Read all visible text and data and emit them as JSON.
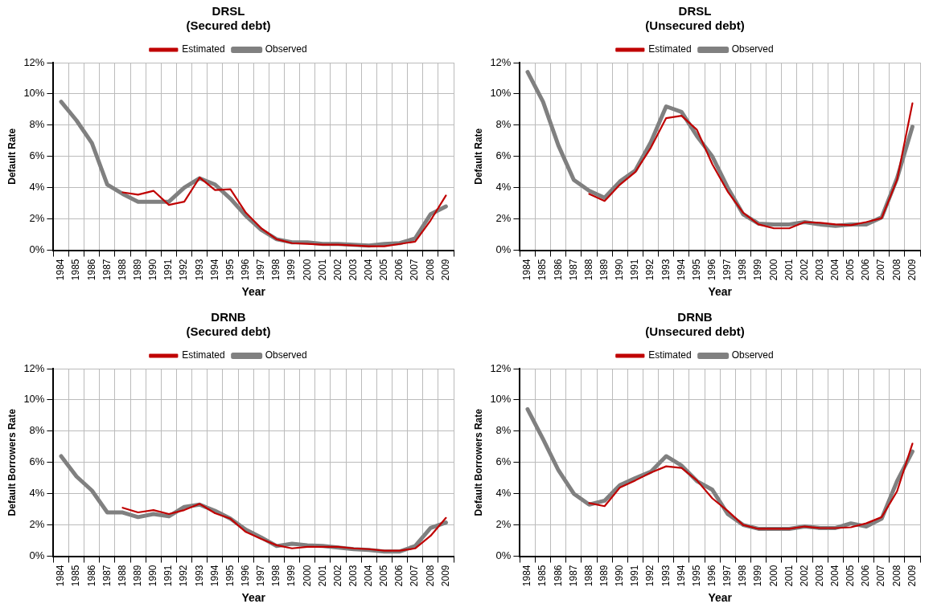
{
  "chart_data": [
    {
      "type": "line",
      "title": "DRSL",
      "subtitle": "(Secured debt)",
      "xlabel": "Year",
      "ylabel": "Default Rate",
      "categories": [
        "1984",
        "1985",
        "1986",
        "1987",
        "1988",
        "1989",
        "1990",
        "1991",
        "1992",
        "1993",
        "1994",
        "1995",
        "1996",
        "1997",
        "1998",
        "1999",
        "2000",
        "2001",
        "2002",
        "2003",
        "2004",
        "2005",
        "2006",
        "2007",
        "2008",
        "2009"
      ],
      "series": [
        {
          "name": "Observed",
          "color": "#808080",
          "values": [
            9.5,
            8.3,
            6.85,
            4.2,
            3.6,
            3.1,
            3.1,
            3.1,
            4.0,
            4.6,
            4.2,
            3.3,
            2.2,
            1.3,
            0.7,
            0.5,
            0.5,
            0.4,
            0.4,
            0.35,
            0.3,
            0.4,
            0.45,
            0.75,
            2.3,
            2.8
          ]
        },
        {
          "name": "Estimated",
          "color": "#c00000",
          "values": [
            null,
            null,
            null,
            null,
            3.7,
            3.55,
            3.8,
            2.9,
            3.1,
            4.65,
            3.85,
            3.9,
            2.4,
            1.4,
            0.7,
            0.45,
            0.4,
            0.35,
            0.35,
            0.3,
            0.25,
            0.25,
            0.4,
            0.55,
            1.9,
            3.5
          ]
        }
      ],
      "ylim": [
        0,
        12
      ],
      "yticks": [
        {
          "value": 0,
          "label": "0%"
        },
        {
          "value": 2,
          "label": "2%"
        },
        {
          "value": 4,
          "label": "4%"
        },
        {
          "value": 6,
          "label": "6%"
        },
        {
          "value": 8,
          "label": "8%"
        },
        {
          "value": 10,
          "label": "10%"
        },
        {
          "value": 12,
          "label": "12%"
        }
      ],
      "grid": true,
      "legend": "top",
      "marker": "none",
      "line_style": "solid"
    },
    {
      "type": "line",
      "title": "DRSL",
      "subtitle": "(Unsecured debt)",
      "xlabel": "Year",
      "ylabel": "Default Rate",
      "categories": [
        "1984",
        "1985",
        "1986",
        "1987",
        "1988",
        "1989",
        "1990",
        "1991",
        "1992",
        "1993",
        "1994",
        "1995",
        "1996",
        "1997",
        "1998",
        "1999",
        "2000",
        "2001",
        "2002",
        "2003",
        "2004",
        "2005",
        "2006",
        "2007",
        "2008",
        "2009"
      ],
      "series": [
        {
          "name": "Observed",
          "color": "#808080",
          "values": [
            11.4,
            9.5,
            6.7,
            4.5,
            3.8,
            3.35,
            4.4,
            5.1,
            6.9,
            9.2,
            8.85,
            7.3,
            6.0,
            4.0,
            2.3,
            1.7,
            1.65,
            1.65,
            1.8,
            1.65,
            1.55,
            1.65,
            1.65,
            2.1,
            4.6,
            7.9
          ]
        },
        {
          "name": "Estimated",
          "color": "#c00000",
          "values": [
            null,
            null,
            null,
            null,
            3.6,
            3.15,
            4.2,
            5.0,
            6.55,
            8.45,
            8.6,
            7.7,
            5.5,
            3.75,
            2.4,
            1.65,
            1.4,
            1.4,
            1.8,
            1.75,
            1.65,
            1.6,
            1.8,
            2.05,
            4.5,
            9.4
          ]
        }
      ],
      "ylim": [
        0,
        12
      ],
      "yticks": [
        {
          "value": 0,
          "label": "0%"
        },
        {
          "value": 2,
          "label": "2%"
        },
        {
          "value": 4,
          "label": "4%"
        },
        {
          "value": 6,
          "label": "6%"
        },
        {
          "value": 8,
          "label": "8%"
        },
        {
          "value": 10,
          "label": "10%"
        },
        {
          "value": 12,
          "label": "12%"
        }
      ],
      "grid": true,
      "legend": "top",
      "marker": "none",
      "line_style": "solid"
    },
    {
      "type": "line",
      "title": "DRNB",
      "subtitle": "(Secured debt)",
      "xlabel": "Year",
      "ylabel": "Default Borrowers Rate",
      "categories": [
        "1984",
        "1985",
        "1986",
        "1987",
        "1988",
        "1989",
        "1990",
        "1991",
        "1992",
        "1993",
        "1994",
        "1995",
        "1996",
        "1997",
        "1998",
        "1999",
        "2000",
        "2001",
        "2002",
        "2003",
        "2004",
        "2005",
        "2006",
        "2007",
        "2008",
        "2009"
      ],
      "series": [
        {
          "name": "Observed",
          "color": "#808080",
          "values": [
            6.4,
            5.1,
            4.2,
            2.8,
            2.8,
            2.5,
            2.7,
            2.55,
            3.15,
            3.3,
            2.9,
            2.4,
            1.7,
            1.2,
            0.65,
            0.8,
            0.7,
            0.65,
            0.55,
            0.45,
            0.4,
            0.3,
            0.3,
            0.65,
            1.8,
            2.15
          ]
        },
        {
          "name": "Estimated",
          "color": "#c00000",
          "values": [
            null,
            null,
            null,
            null,
            3.1,
            2.8,
            2.95,
            2.7,
            2.95,
            3.35,
            2.75,
            2.4,
            1.55,
            1.1,
            0.7,
            0.5,
            0.6,
            0.6,
            0.6,
            0.5,
            0.45,
            0.35,
            0.35,
            0.5,
            1.3,
            2.45
          ]
        }
      ],
      "ylim": [
        0,
        12
      ],
      "yticks": [
        {
          "value": 0,
          "label": "0%"
        },
        {
          "value": 2,
          "label": "2%"
        },
        {
          "value": 4,
          "label": "4%"
        },
        {
          "value": 6,
          "label": "6%"
        },
        {
          "value": 8,
          "label": "8%"
        },
        {
          "value": 10,
          "label": "10%"
        },
        {
          "value": 12,
          "label": "12%"
        }
      ],
      "grid": true,
      "legend": "top",
      "marker": "none",
      "line_style": "solid"
    },
    {
      "type": "line",
      "title": "DRNB",
      "subtitle": "(Unsecured debt)",
      "xlabel": "Year",
      "ylabel": "Default Borrowers Rate",
      "categories": [
        "1984",
        "1985",
        "1986",
        "1987",
        "1988",
        "1989",
        "1990",
        "1991",
        "1992",
        "1993",
        "1994",
        "1995",
        "1996",
        "1997",
        "1998",
        "1999",
        "2000",
        "2001",
        "2002",
        "2003",
        "2004",
        "2005",
        "2006",
        "2007",
        "2008",
        "2009"
      ],
      "series": [
        {
          "name": "Observed",
          "color": "#808080",
          "values": [
            9.4,
            7.5,
            5.5,
            4.0,
            3.3,
            3.55,
            4.55,
            5.0,
            5.4,
            6.4,
            5.8,
            4.8,
            4.25,
            2.7,
            2.0,
            1.75,
            1.75,
            1.75,
            1.9,
            1.8,
            1.8,
            2.1,
            1.9,
            2.4,
            4.8,
            6.7
          ]
        },
        {
          "name": "Estimated",
          "color": "#c00000",
          "values": [
            null,
            null,
            null,
            null,
            3.4,
            3.2,
            4.4,
            4.85,
            5.35,
            5.75,
            5.65,
            4.85,
            3.7,
            2.9,
            2.0,
            1.75,
            1.75,
            1.75,
            1.9,
            1.8,
            1.8,
            1.85,
            2.1,
            2.5,
            4.15,
            7.2
          ]
        }
      ],
      "ylim": [
        0,
        12
      ],
      "yticks": [
        {
          "value": 0,
          "label": "0%"
        },
        {
          "value": 2,
          "label": "2%"
        },
        {
          "value": 4,
          "label": "4%"
        },
        {
          "value": 6,
          "label": "6%"
        },
        {
          "value": 8,
          "label": "8%"
        },
        {
          "value": 10,
          "label": "10%"
        },
        {
          "value": 12,
          "label": "12%"
        }
      ],
      "grid": true,
      "legend": "top",
      "marker": "none",
      "line_style": "solid"
    }
  ]
}
